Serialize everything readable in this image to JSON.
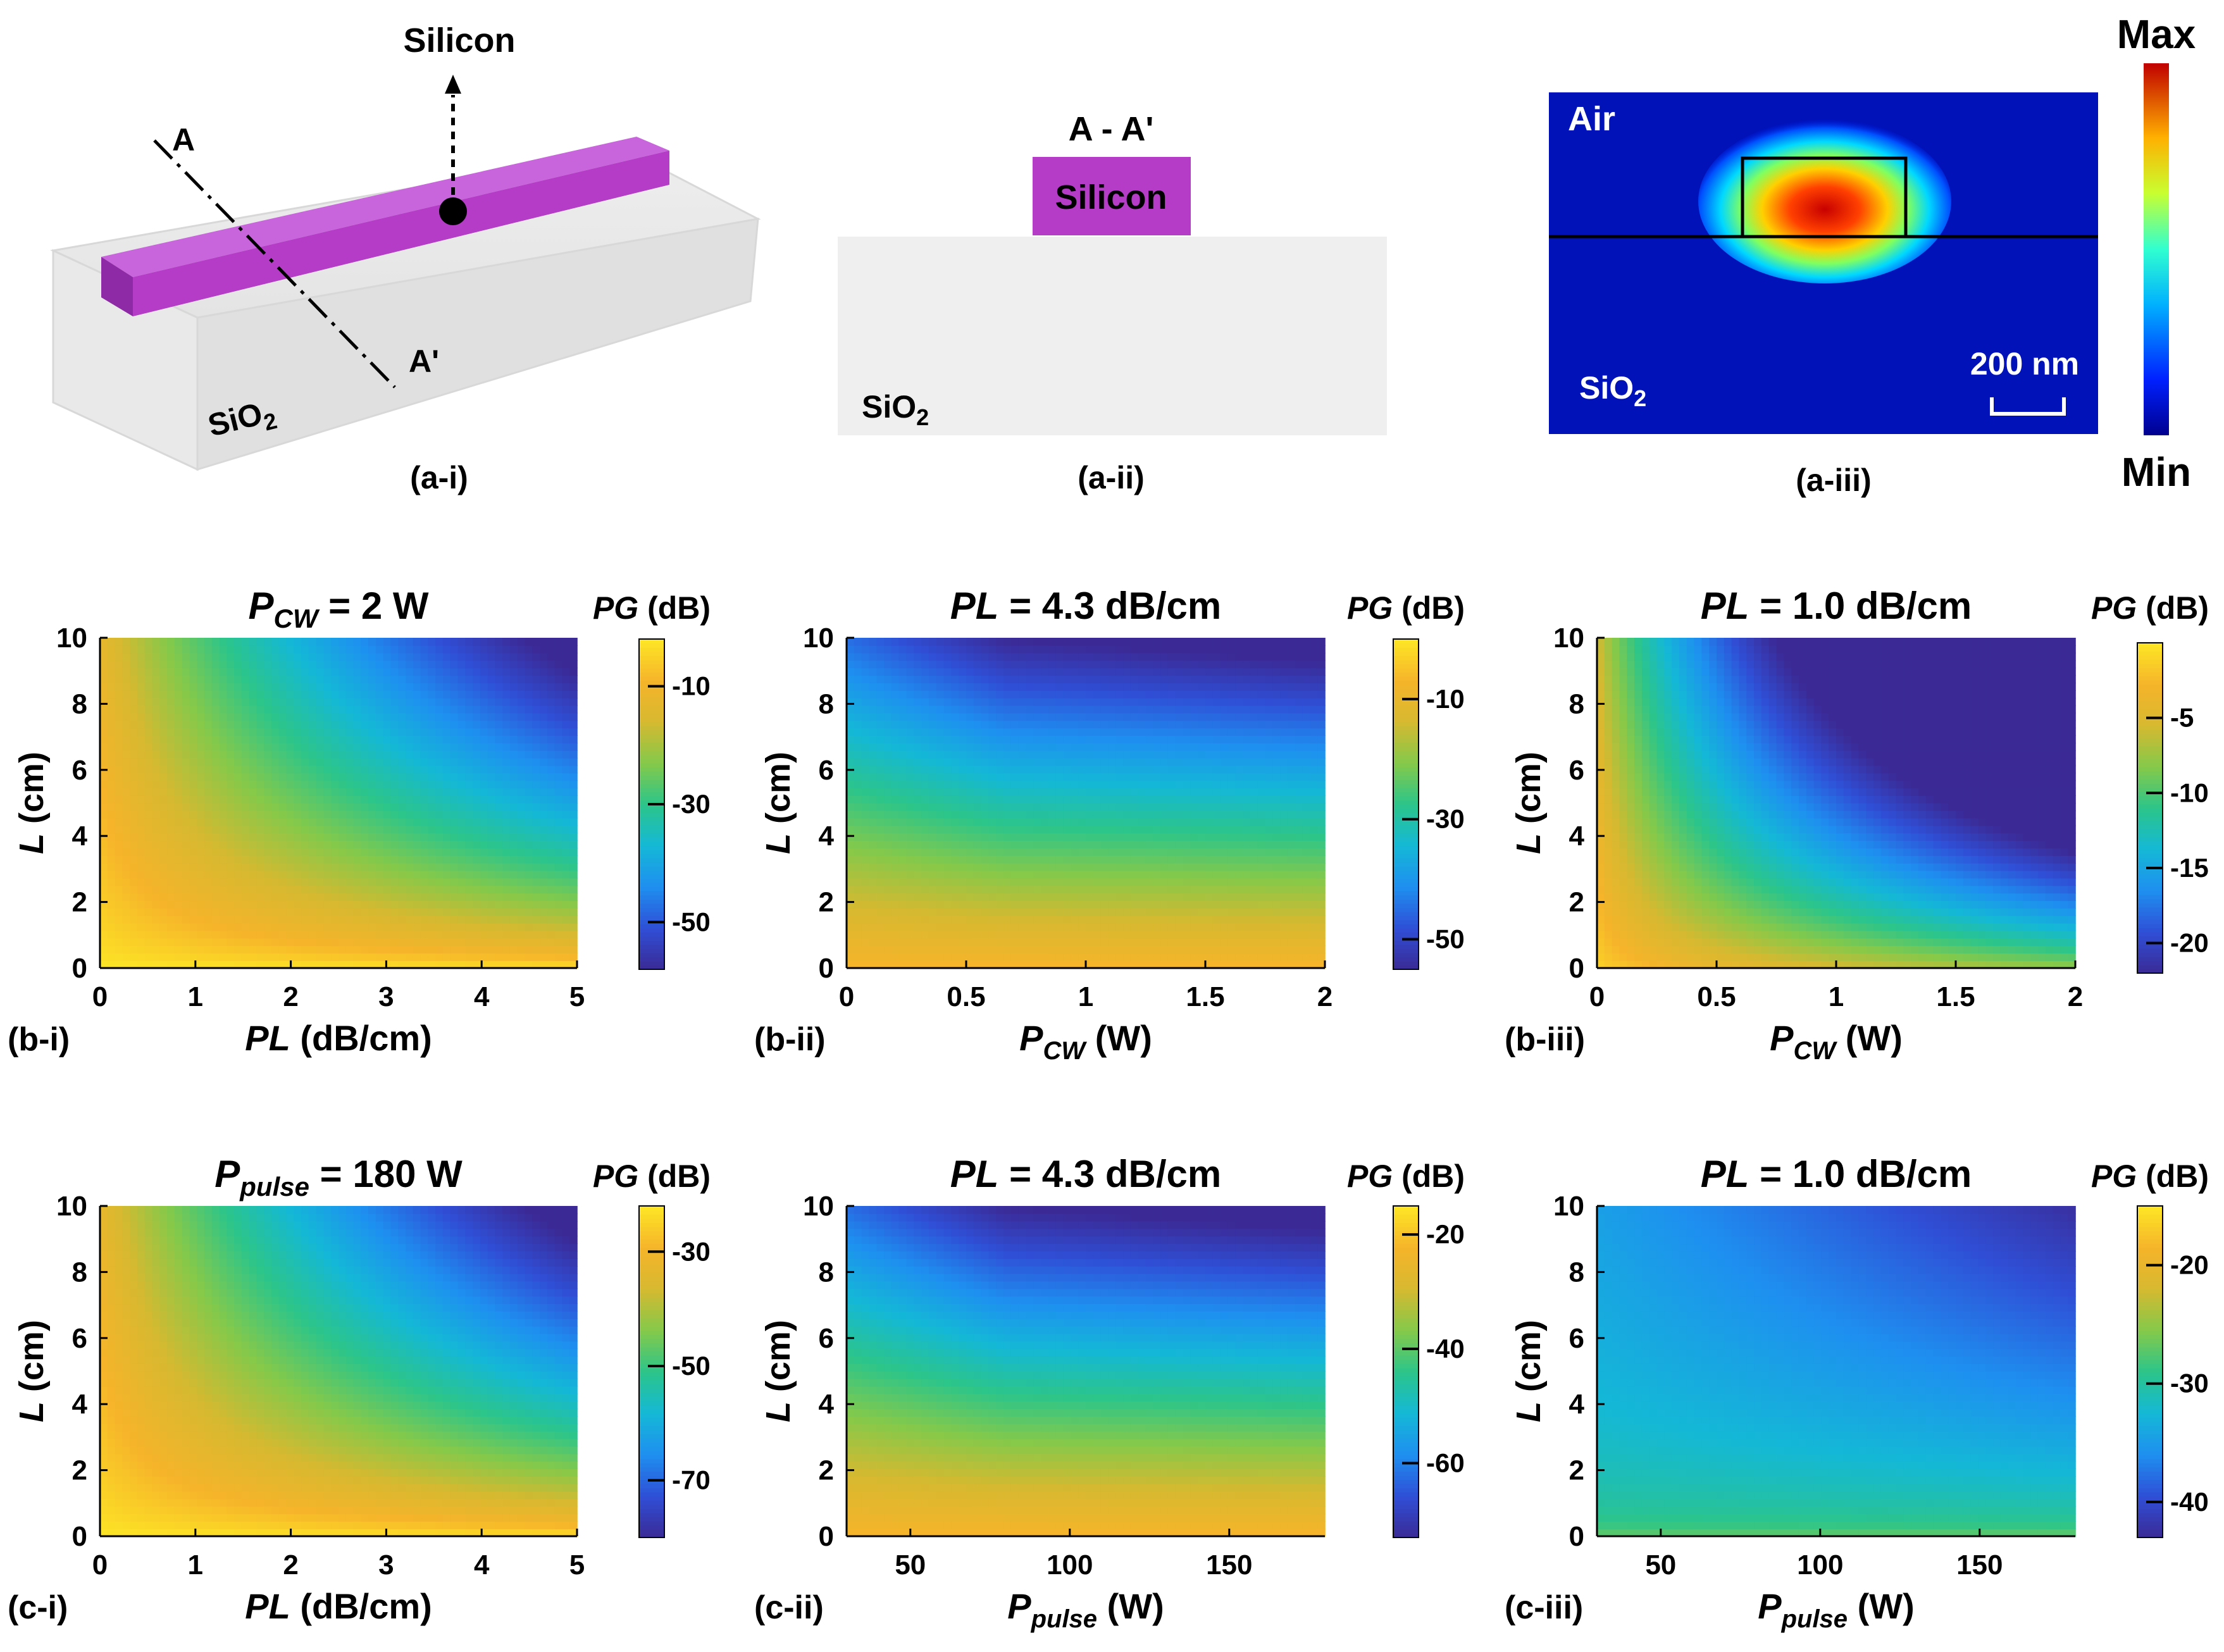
{
  "colormap": [
    "#3b2a96",
    "#2f4fd6",
    "#1e8ff0",
    "#14b8d6",
    "#2cc58a",
    "#85c94a",
    "#d6b930",
    "#f6b42a",
    "#fde725"
  ],
  "top": {
    "a_i": {
      "silicon_label": "Silicon",
      "A": "A",
      "A_prime": "A'",
      "sio2_main": "SiO",
      "sio2_sub": "2",
      "caption": "(a-i)",
      "waveguide_color": "#b43cc6"
    },
    "a_ii": {
      "section_label": "A - A'",
      "silicon_label": "Silicon",
      "sio2_main": "SiO",
      "sio2_sub": "2",
      "caption": "(a-ii)",
      "waveguide_color": "#b43cc6"
    },
    "a_iii": {
      "air_label": "Air",
      "sio2_main": "SiO",
      "sio2_sub": "2",
      "scale_label": "200 nm",
      "caption": "(a-iii)",
      "max_label": "Max",
      "min_label": "Min"
    }
  },
  "chart_data": [
    {
      "type": "heatmap",
      "id": "b-i",
      "caption": "(b-i)",
      "title_main": "P",
      "title_sub": "CW",
      "title_rest": " = 2 W",
      "xlabel_main": "PL",
      "xlabel_sub": "",
      "xlabel_rest": " (dB/cm)",
      "ylabel": "L (cm)",
      "xlim": [
        0,
        5
      ],
      "ylim": [
        0,
        10
      ],
      "xticks": [
        0,
        1,
        2,
        3,
        4,
        5
      ],
      "xtick_labels": [
        "0",
        "1",
        "2",
        "3",
        "4",
        "5"
      ],
      "yticks": [
        0,
        2,
        4,
        6,
        8,
        10
      ],
      "ytick_labels": [
        "0",
        "2",
        "4",
        "6",
        "8",
        "10"
      ],
      "colorbar_label_main": "PG",
      "colorbar_label_rest": " (dB)",
      "colorbar_ticks": [
        -10,
        -30,
        -50
      ],
      "colorbar_range": [
        -58,
        -2
      ],
      "model": "pl",
      "min_db": -58,
      "max_db": -2
    },
    {
      "type": "heatmap",
      "id": "b-ii",
      "caption": "(b-ii)",
      "title_main": "PL",
      "title_sub": "",
      "title_rest": " = 4.3 dB/cm",
      "xlabel_main": "P",
      "xlabel_sub": "CW",
      "xlabel_rest": " (W)",
      "ylabel": "L (cm)",
      "xlim": [
        0,
        2
      ],
      "ylim": [
        0,
        10
      ],
      "xticks": [
        0,
        0.5,
        1,
        1.5,
        2
      ],
      "xtick_labels": [
        "0",
        "0.5",
        "1",
        "1.5",
        "2"
      ],
      "yticks": [
        0,
        2,
        4,
        6,
        8,
        10
      ],
      "ytick_labels": [
        "0",
        "2",
        "4",
        "6",
        "8",
        "10"
      ],
      "colorbar_label_main": "PG",
      "colorbar_label_rest": " (dB)",
      "colorbar_ticks": [
        -10,
        -30,
        -50
      ],
      "colorbar_range": [
        -55,
        0
      ],
      "model": "power_hi",
      "min_db": -55,
      "max_db": 0
    },
    {
      "type": "heatmap",
      "id": "b-iii",
      "caption": "(b-iii)",
      "title_main": "PL",
      "title_sub": "",
      "title_rest": " = 1.0 dB/cm",
      "xlabel_main": "P",
      "xlabel_sub": "CW",
      "xlabel_rest": " (W)",
      "ylabel": "L (cm)",
      "xlim": [
        0,
        2
      ],
      "ylim": [
        0,
        10
      ],
      "xticks": [
        0,
        0.5,
        1,
        1.5,
        2
      ],
      "xtick_labels": [
        "0",
        "0.5",
        "1",
        "1.5",
        "2"
      ],
      "yticks": [
        0,
        2,
        4,
        6,
        8,
        10
      ],
      "ytick_labels": [
        "0",
        "2",
        "4",
        "6",
        "8",
        "10"
      ],
      "colorbar_label_main": "PG",
      "colorbar_label_rest": " (dB)",
      "colorbar_ticks": [
        -5,
        -10,
        -15,
        -20
      ],
      "colorbar_range": [
        -22,
        0
      ],
      "model": "power_lo",
      "min_db": -22,
      "max_db": 0
    },
    {
      "type": "heatmap",
      "id": "c-i",
      "caption": "(c-i)",
      "title_main": "P",
      "title_sub": "pulse",
      "title_rest": " = 180 W",
      "xlabel_main": "PL",
      "xlabel_sub": "",
      "xlabel_rest": " (dB/cm)",
      "ylabel": "L (cm)",
      "xlim": [
        0,
        5
      ],
      "ylim": [
        0,
        10
      ],
      "xticks": [
        0,
        1,
        2,
        3,
        4,
        5
      ],
      "xtick_labels": [
        "0",
        "1",
        "2",
        "3",
        "4",
        "5"
      ],
      "yticks": [
        0,
        2,
        4,
        6,
        8,
        10
      ],
      "ytick_labels": [
        "0",
        "2",
        "4",
        "6",
        "8",
        "10"
      ],
      "colorbar_label_main": "PG",
      "colorbar_label_rest": " (dB)",
      "colorbar_ticks": [
        -30,
        -50,
        -70
      ],
      "colorbar_range": [
        -80,
        -22
      ],
      "model": "pl",
      "min_db": -80,
      "max_db": -22
    },
    {
      "type": "heatmap",
      "id": "c-ii",
      "caption": "(c-ii)",
      "title_main": "PL",
      "title_sub": "",
      "title_rest": " = 4.3 dB/cm",
      "xlabel_main": "P",
      "xlabel_sub": "pulse",
      "xlabel_rest": " (W)",
      "ylabel": "L (cm)",
      "xlim": [
        30,
        180
      ],
      "ylim": [
        0,
        10
      ],
      "xticks": [
        50,
        100,
        150
      ],
      "xtick_labels": [
        "50",
        "100",
        "150"
      ],
      "yticks": [
        0,
        2,
        4,
        6,
        8,
        10
      ],
      "ytick_labels": [
        "0",
        "2",
        "4",
        "6",
        "8",
        "10"
      ],
      "colorbar_label_main": "PG",
      "colorbar_label_rest": " (dB)",
      "colorbar_ticks": [
        -20,
        -40,
        -60
      ],
      "colorbar_range": [
        -73,
        -15
      ],
      "model": "power_hi",
      "min_db": -73,
      "max_db": -15
    },
    {
      "type": "heatmap",
      "id": "c-iii",
      "caption": "(c-iii)",
      "title_main": "PL",
      "title_sub": "",
      "title_rest": " = 1.0 dB/cm",
      "xlabel_main": "P",
      "xlabel_sub": "pulse",
      "xlabel_rest": " (W)",
      "ylabel": "L (cm)",
      "xlim": [
        30,
        180
      ],
      "ylim": [
        0,
        10
      ],
      "xticks": [
        50,
        100,
        150
      ],
      "xtick_labels": [
        "50",
        "100",
        "150"
      ],
      "yticks": [
        0,
        2,
        4,
        6,
        8,
        10
      ],
      "ytick_labels": [
        "0",
        "2",
        "4",
        "6",
        "8",
        "10"
      ],
      "colorbar_label_main": "PG",
      "colorbar_label_rest": " (dB)",
      "colorbar_ticks": [
        -20,
        -30,
        -40
      ],
      "colorbar_range": [
        -43,
        -15
      ],
      "model": "power_c",
      "min_db": -43,
      "max_db": -15
    }
  ]
}
